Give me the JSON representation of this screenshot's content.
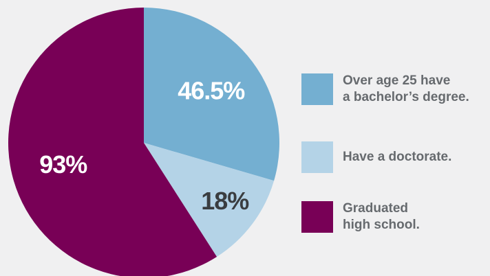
{
  "chart_data": {
    "type": "pie",
    "title": "",
    "slices": [
      {
        "label_lines": [
          "Over age 25 have",
          "a bachelor’s degree."
        ],
        "value_label": "46.5%",
        "value": 46.5,
        "color": "#74afd1",
        "label_color": "#ffffff"
      },
      {
        "label_lines": [
          "Have a doctorate."
        ],
        "value_label": "18%",
        "value": 18,
        "color": "#b4d3e7",
        "label_color": "#3a3d40"
      },
      {
        "label_lines": [
          "Graduated",
          "high school."
        ],
        "value_label": "93%",
        "value": 93,
        "color": "#780056",
        "label_color": "#ffffff"
      }
    ],
    "legend_position": "right"
  }
}
